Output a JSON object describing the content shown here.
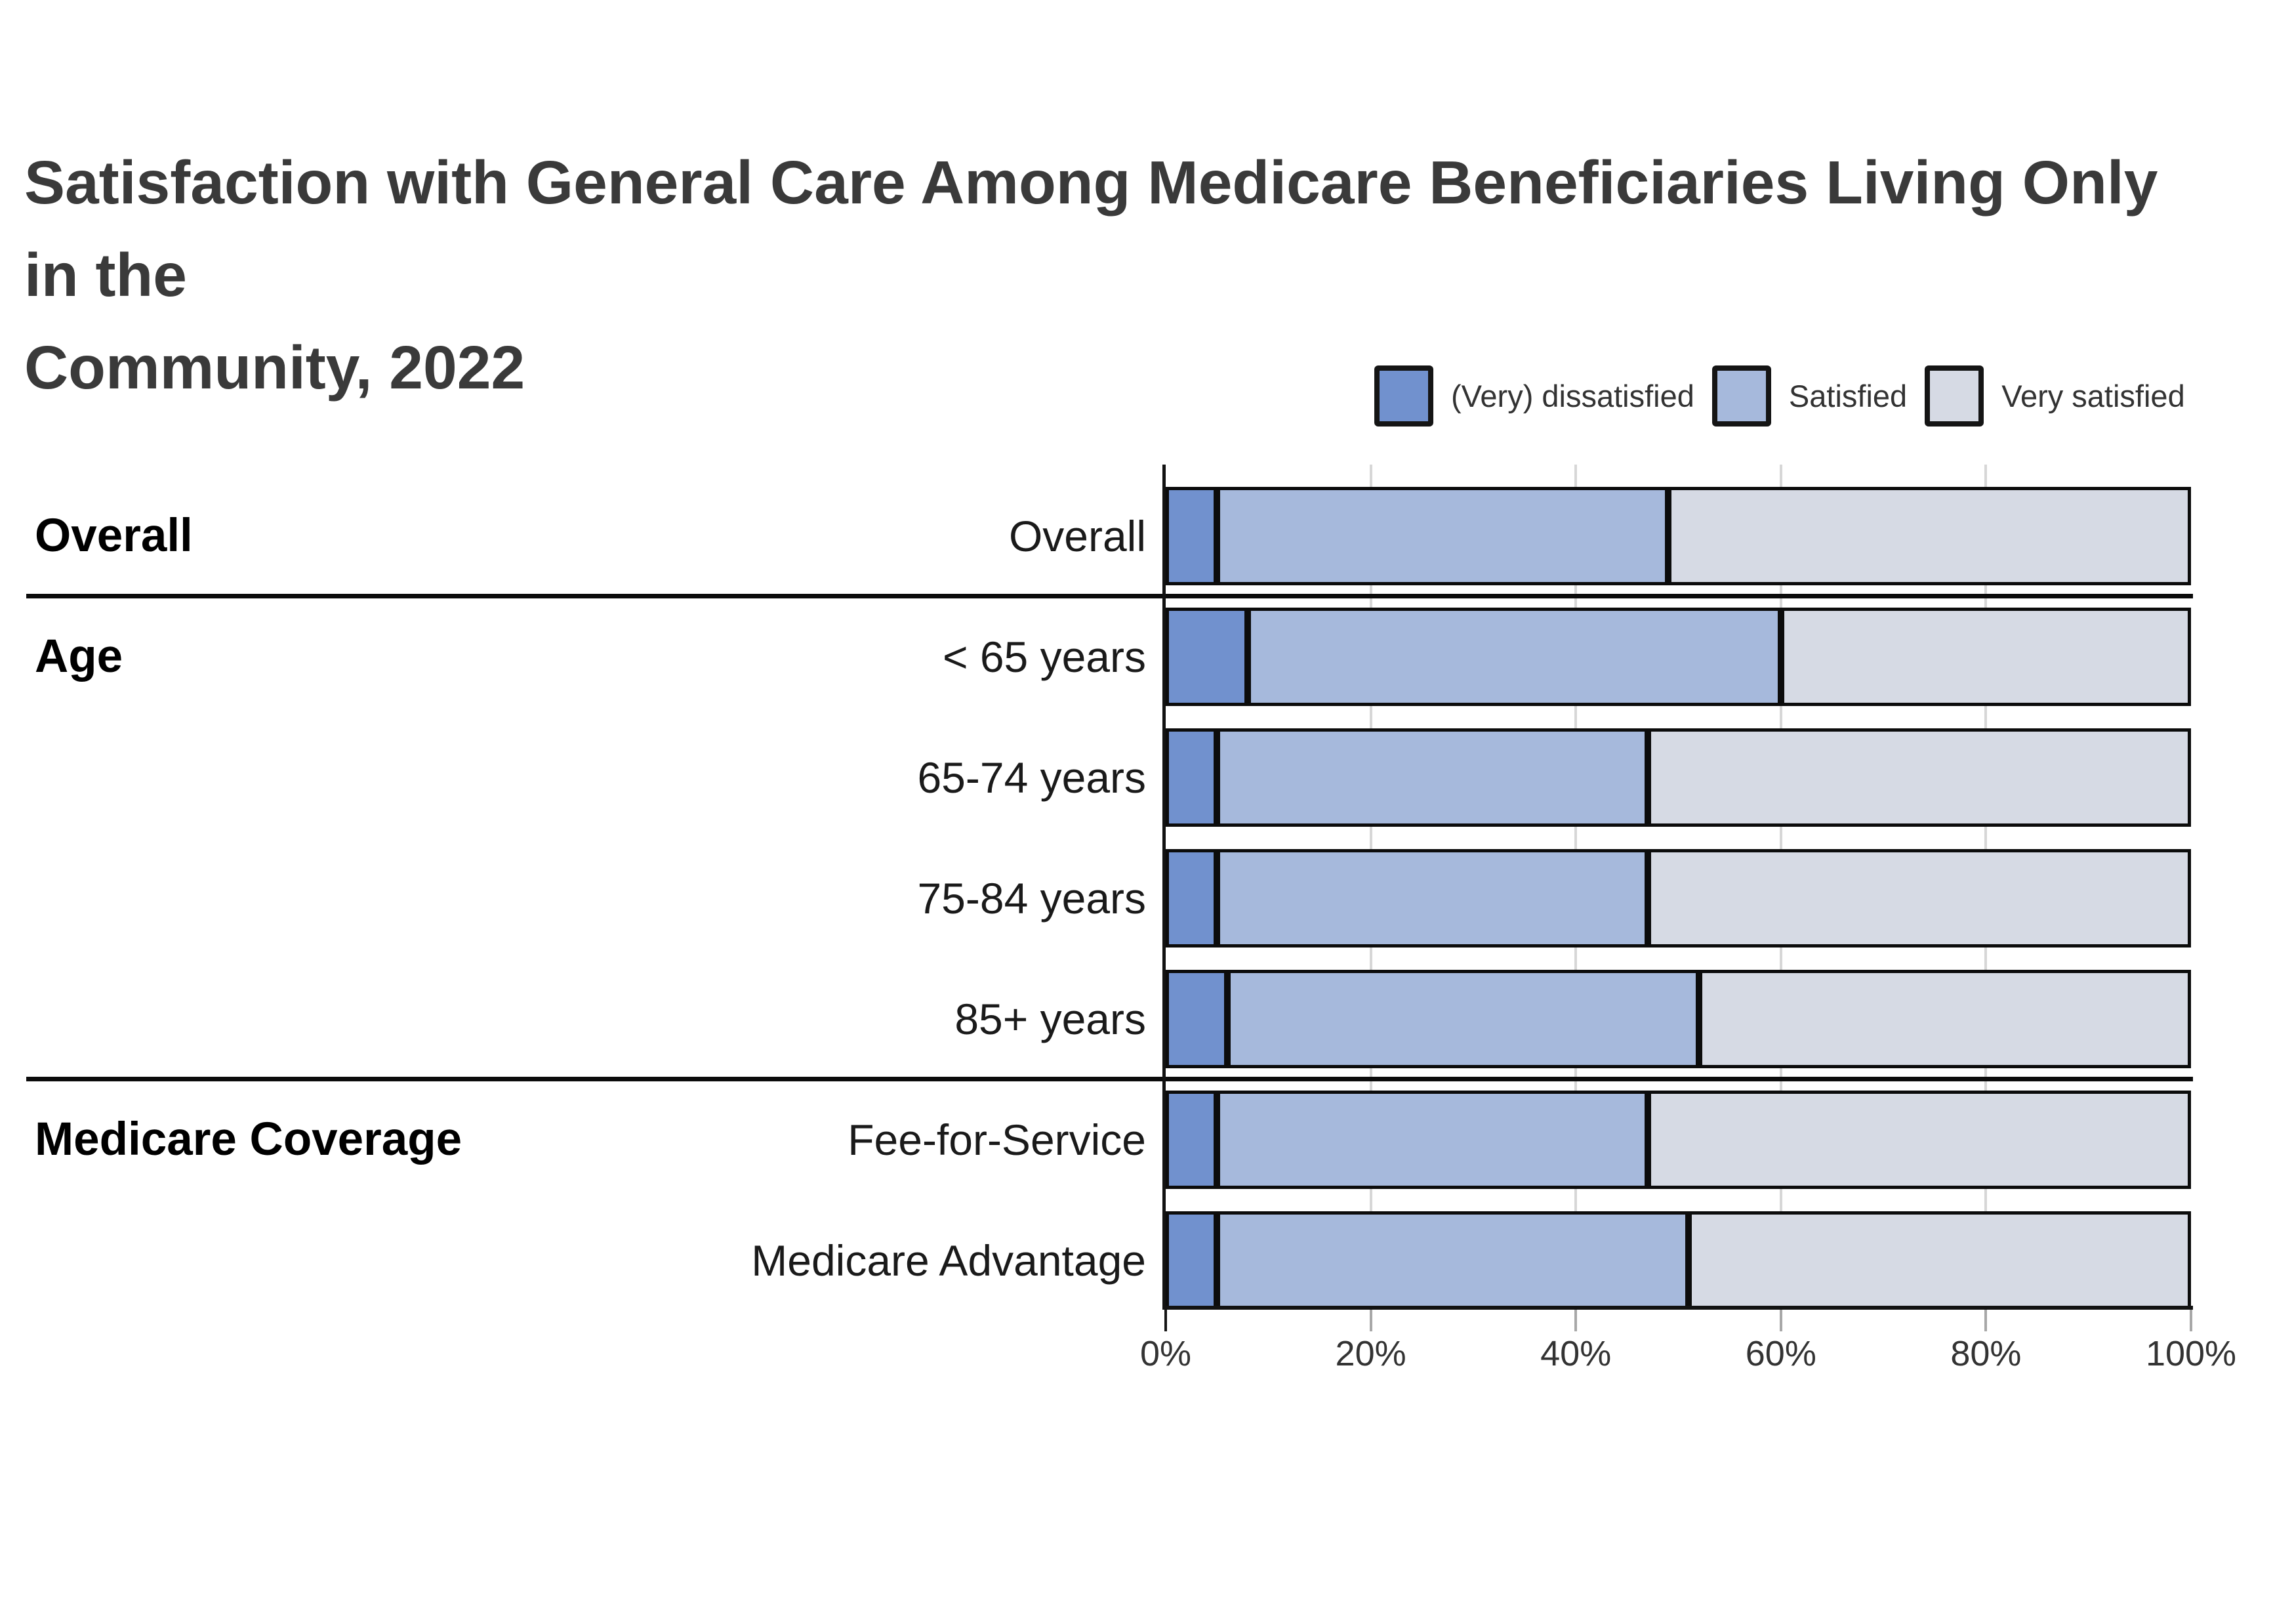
{
  "title": {
    "line1": "Satisfaction with General Care Among Medicare Beneficiaries Living Only in the",
    "line2": "Community, 2022"
  },
  "legend": {
    "items": [
      {
        "label": "(Very) dissatisfied",
        "color": "#7191ce"
      },
      {
        "label": "Satisfied",
        "color": "#a6b9dc"
      },
      {
        "label": "Very satisfied",
        "color": "#d6dae4"
      }
    ]
  },
  "sections": [
    {
      "label": "Overall",
      "first_row": 0,
      "last_row": 0
    },
    {
      "label": "Age",
      "first_row": 1,
      "last_row": 4
    },
    {
      "label": "Medicare Coverage",
      "first_row": 5,
      "last_row": 6
    }
  ],
  "chart_data": {
    "type": "bar",
    "orientation": "horizontal",
    "stacked": true,
    "title": "Satisfaction with General Care Among Medicare Beneficiaries Living Only in the Community, 2022",
    "categories": [
      "Overall",
      "< 65 years",
      "65-74 years",
      "75-84 years",
      "85+ years",
      "Fee-for-Service",
      "Medicare Advantage"
    ],
    "series": [
      {
        "name": "(Very) dissatisfied",
        "color": "#7191ce",
        "values": [
          5,
          8,
          5,
          5,
          6,
          5,
          5
        ]
      },
      {
        "name": "Satisfied",
        "color": "#a6b9dc",
        "values": [
          44,
          52,
          42,
          42,
          46,
          42,
          46
        ]
      },
      {
        "name": "Very satisfied",
        "color": "#d6dae4",
        "values": [
          51,
          40,
          53,
          53,
          48,
          53,
          49
        ]
      }
    ],
    "xlabel": "",
    "ylabel": "",
    "xlim": [
      0,
      100
    ],
    "x_tick_values": [
      0,
      20,
      40,
      60,
      80,
      100
    ],
    "x_tick_labels": [
      "0%",
      "20%",
      "40%",
      "60%",
      "80%",
      "100%"
    ],
    "grid": "vertical-light-gray",
    "legend_position": "top-right"
  },
  "colors": {
    "background": "#ffffff",
    "bar_border": "#0c0c0c",
    "axis": "#121212",
    "gridline": "#d7d7d7",
    "tick": "#a8a8a8",
    "title_text": "#3a3a3a",
    "label_text": "#1a1a1a"
  }
}
